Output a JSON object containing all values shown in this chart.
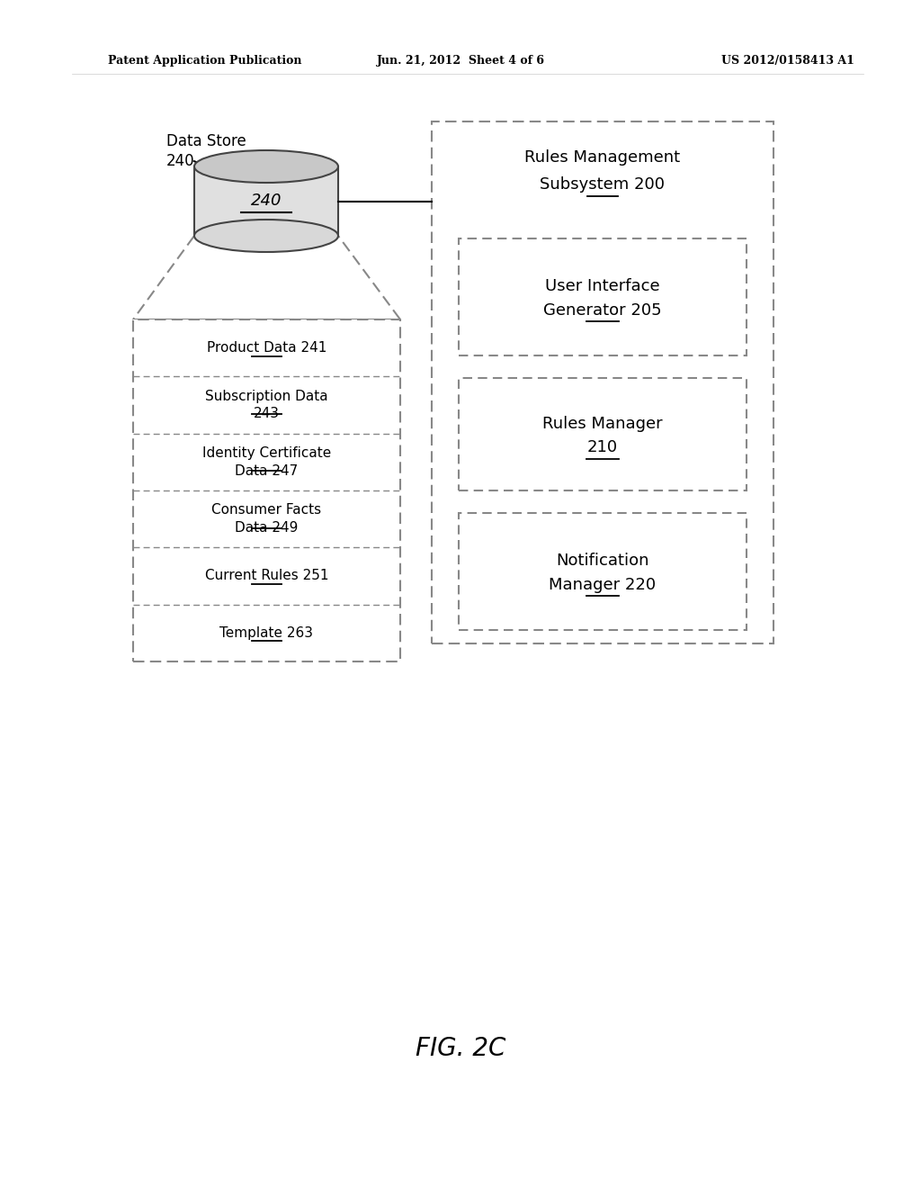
{
  "bg_color": "#ffffff",
  "header_left": "Patent Application Publication",
  "header_center": "Jun. 21, 2012  Sheet 4 of 6",
  "header_right": "US 2012/0158413 A1",
  "fig_label": "FIG. 2C",
  "data_store_label1": "Data Store",
  "data_store_label2": "240",
  "cylinder_label": "240",
  "bottle_rows": [
    {
      "text": "Product Data 241",
      "underline": "241",
      "multiline": false
    },
    {
      "text": "Subscription Data\n243",
      "underline": "243",
      "multiline": true
    },
    {
      "text": "Identity Certificate\nData 247",
      "underline": "247",
      "multiline": true
    },
    {
      "text": "Consumer Facts\nData 249",
      "underline": "249",
      "multiline": true
    },
    {
      "text": "Current Rules 251",
      "underline": "251",
      "multiline": false
    },
    {
      "text": "Template 263",
      "underline": "263",
      "multiline": false
    }
  ],
  "rms_title_line1": "Rules Management",
  "rms_title_line2": "Subsystem 200",
  "rms_boxes": [
    {
      "line1": "User Interface",
      "line2": "Generator 205",
      "num": "205"
    },
    {
      "line1": "Rules Manager",
      "line2": "210",
      "num": "210"
    },
    {
      "line1": "Notification",
      "line2": "Manager 220",
      "num": "220"
    }
  ],
  "border_color": "#aaaaaa",
  "line_color": "#000000",
  "text_color": "#000000",
  "font_size_header": 9,
  "font_size_body": 11,
  "font_size_label": 11,
  "font_size_fig": 20
}
